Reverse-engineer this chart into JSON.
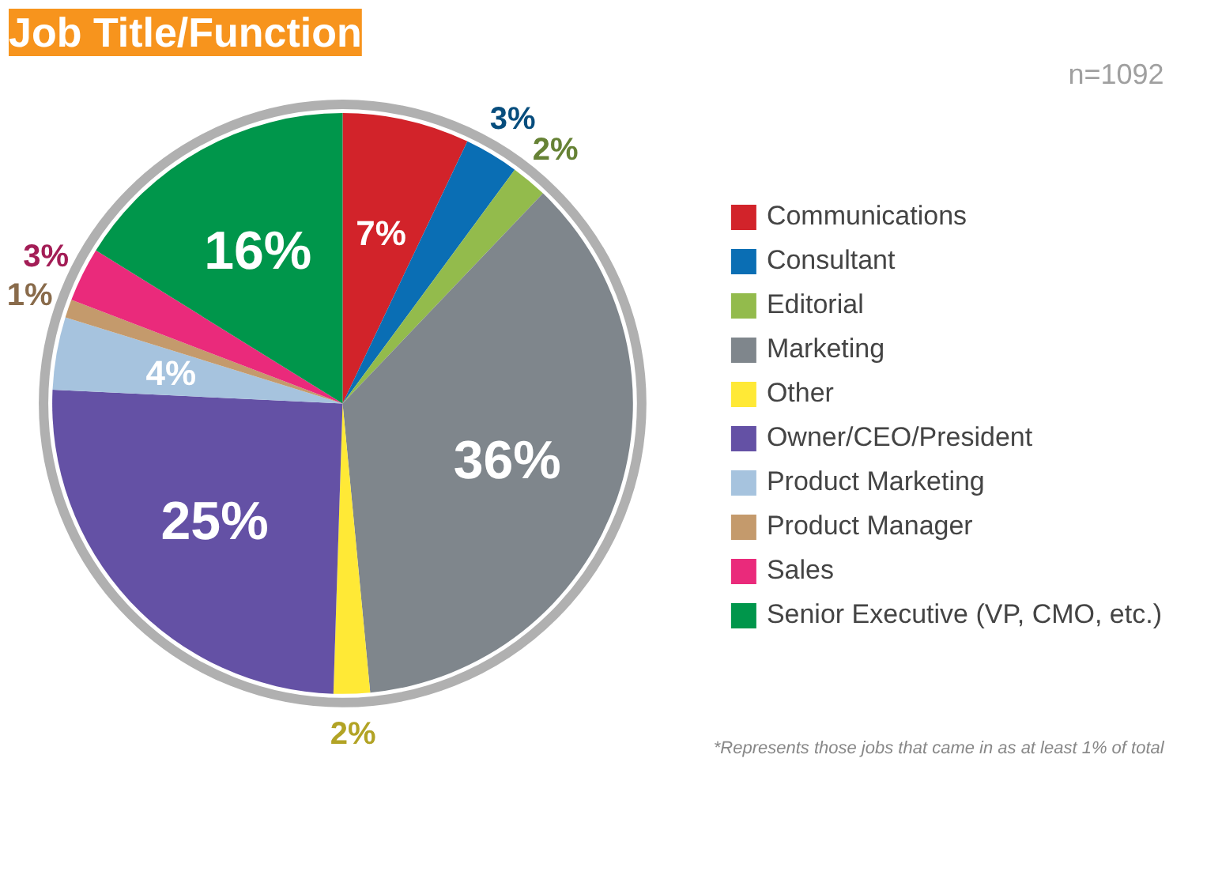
{
  "chart_data": {
    "type": "pie",
    "title": "Job Title/Function",
    "categories": [
      "Communications",
      "Consultant",
      "Editorial",
      "Marketing",
      "Other",
      "Owner/CEO/President",
      "Product Marketing",
      "Product Manager",
      "Sales",
      "Senior Executive (VP, CMO, etc.)"
    ],
    "values": [
      7,
      3,
      2,
      36,
      2,
      25,
      4,
      1,
      3,
      16
    ],
    "value_labels": [
      "7%",
      "3%",
      "2%",
      "36%",
      "2%",
      "25%",
      "4%",
      "1%",
      "3%",
      "16%"
    ],
    "colors": [
      "#d2232a",
      "#0a6eb4",
      "#93bb4c",
      "#7f868c",
      "#ffe936",
      "#6451a5",
      "#a6c3de",
      "#c49a6c",
      "#ea2a7b",
      "#00964b"
    ],
    "legend": "right",
    "annotations": [
      "n=1092",
      "*Represents those jobs that came in as at least 1% of total"
    ]
  }
}
